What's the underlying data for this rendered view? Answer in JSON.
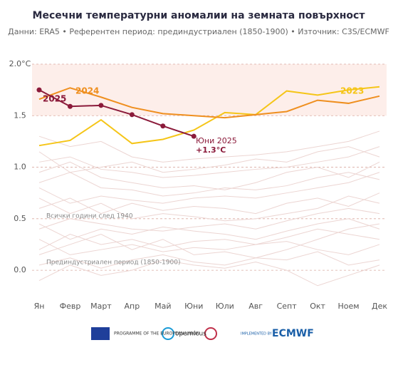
{
  "chart_data": {
    "type": "line",
    "title": "Месечни температурни аномалии на земната повърхност",
    "subtitle": "Данни: ERA5 • Референтен период: прединдустриален (1850-1900) • Източник: C3S/ECMWF",
    "categories": [
      "Ян",
      "Февр",
      "Март",
      "Апр",
      "Май",
      "Юни",
      "Юли",
      "Авг",
      "Септ",
      "Окт",
      "Ноем",
      "Дек"
    ],
    "ylim": [
      -0.2,
      2.0
    ],
    "yticks": [
      {
        "value": 0,
        "label": "0.0"
      },
      0.5,
      {
        "value": 1,
        "label": "1.0"
      },
      1.5,
      {
        "value": 2,
        "label": "2.0°C"
      }
    ],
    "grid": true,
    "band": [
      1.5,
      2.0
    ],
    "series": [
      {
        "name": "2023",
        "color": "#f5c518",
        "values": [
          1.21,
          1.26,
          1.46,
          1.23,
          1.27,
          1.36,
          1.53,
          1.51,
          1.74,
          1.7,
          1.75,
          1.78
        ]
      },
      {
        "name": "2024",
        "color": "#ef8f1f",
        "values": [
          1.66,
          1.77,
          1.68,
          1.58,
          1.52,
          1.5,
          1.48,
          1.51,
          1.54,
          1.65,
          1.62,
          1.69
        ]
      },
      {
        "name": "2025",
        "color": "#8b1a3a",
        "values": [
          1.75,
          1.59,
          1.6,
          1.51,
          1.4,
          1.3,
          null,
          null,
          null,
          null,
          null,
          null
        ]
      }
    ],
    "background_color": "#ecd5d2",
    "background_series": [
      [
        0.05,
        0.12,
        0.02,
        0.1,
        0.15,
        0.08,
        0.05,
        0.12,
        0.1,
        0.18,
        0.05,
        0.1
      ],
      [
        0.2,
        0.35,
        0.25,
        0.3,
        0.22,
        0.28,
        0.3,
        0.25,
        0.32,
        0.4,
        0.35,
        0.3
      ],
      [
        0.45,
        0.3,
        0.4,
        0.35,
        0.42,
        0.38,
        0.35,
        0.3,
        0.38,
        0.45,
        0.5,
        0.4
      ],
      [
        0.6,
        0.7,
        0.55,
        0.65,
        0.58,
        0.62,
        0.6,
        0.55,
        0.65,
        0.7,
        0.62,
        0.75
      ],
      [
        0.85,
        0.95,
        0.8,
        0.78,
        0.72,
        0.75,
        0.8,
        0.78,
        0.82,
        0.9,
        0.95,
        0.88
      ],
      [
        1.05,
        1.1,
        0.98,
        0.95,
        0.9,
        0.92,
        0.95,
        0.98,
        1.0,
        1.05,
        1.1,
        1.2
      ],
      [
        1.3,
        1.2,
        1.25,
        1.1,
        1.05,
        1.08,
        1.1,
        1.12,
        1.15,
        1.2,
        1.25,
        1.35
      ],
      [
        -0.1,
        0.05,
        -0.05,
        0.0,
        0.1,
        0.05,
        0.02,
        0.08,
        0.0,
        -0.15,
        -0.05,
        0.05
      ],
      [
        0.3,
        0.15,
        0.2,
        0.25,
        0.18,
        0.22,
        0.2,
        0.25,
        0.28,
        0.2,
        0.15,
        0.25
      ],
      [
        0.7,
        0.55,
        0.65,
        0.5,
        0.55,
        0.52,
        0.48,
        0.5,
        0.55,
        0.6,
        0.72,
        0.65
      ],
      [
        0.95,
        1.05,
        0.9,
        0.85,
        0.8,
        0.82,
        0.78,
        0.85,
        0.95,
        1.0,
        0.9,
        1.05
      ],
      [
        0.15,
        0.25,
        0.35,
        0.2,
        0.3,
        0.15,
        0.18,
        0.12,
        0.2,
        0.3,
        0.4,
        0.45
      ],
      [
        1.15,
        0.95,
        1.0,
        1.05,
        0.95,
        0.98,
        1.02,
        1.08,
        1.05,
        1.15,
        1.2,
        1.1
      ],
      [
        0.4,
        0.5,
        0.45,
        0.4,
        0.38,
        0.42,
        0.45,
        0.4,
        0.48,
        0.55,
        0.6,
        0.55
      ],
      [
        0.8,
        0.65,
        0.72,
        0.68,
        0.65,
        0.7,
        0.72,
        0.7,
        0.75,
        0.8,
        0.85,
        0.95
      ]
    ],
    "annotations": [
      "2025",
      "2024",
      "2023",
      "Юни 2025",
      "+1.3°C",
      "Всички години след 1940",
      "Прединдустриален период (1850-1900)"
    ],
    "footer": [
      "PROGRAMME OF THE EUROPEAN UNION",
      "opernicus",
      "IMPLEMENTED BY",
      "ECMWF"
    ]
  }
}
